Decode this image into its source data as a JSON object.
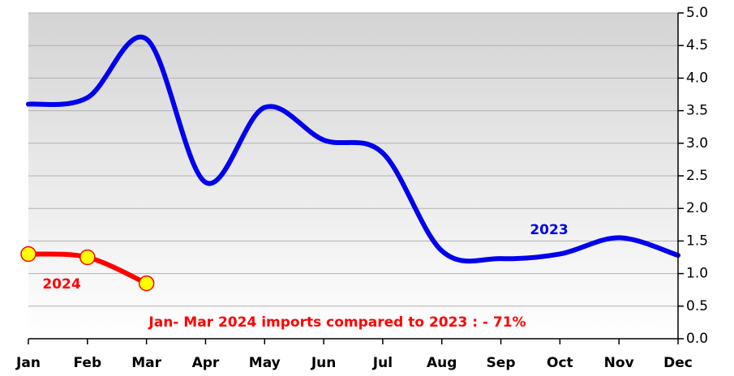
{
  "chart_data": {
    "type": "line",
    "categories": [
      "Jan",
      "Feb",
      "Mar",
      "Apr",
      "May",
      "Jun",
      "Jul",
      "Aug",
      "Sep",
      "Oct",
      "Nov",
      "Dec"
    ],
    "series": [
      {
        "name": "2023",
        "color": "#0000ee",
        "values": [
          3.6,
          3.7,
          4.6,
          2.4,
          3.55,
          3.05,
          2.85,
          1.35,
          1.23,
          1.3,
          1.55,
          1.28
        ]
      },
      {
        "name": "2024",
        "color": "#ff0000",
        "values": [
          1.3,
          1.25,
          0.85,
          null,
          null,
          null,
          null,
          null,
          null,
          null,
          null,
          null
        ]
      }
    ],
    "annotation": "Jan- Mar 2024 imports compared to 2023 : - 71%",
    "ylim": [
      0,
      5
    ],
    "yticks": [
      {
        "value": 0,
        "label": "0.0"
      },
      0.5,
      {
        "value": 1,
        "label": "1.0"
      },
      1.5,
      {
        "value": 2,
        "label": "2.0"
      },
      2.5,
      {
        "value": 3,
        "label": "3.0"
      },
      3.5,
      {
        "value": 4,
        "label": "4.0"
      },
      4.5,
      {
        "value": 5,
        "label": "5.0"
      }
    ],
    "grid": true,
    "yaxis_side": "right",
    "marker_fill": "#ffff00"
  }
}
